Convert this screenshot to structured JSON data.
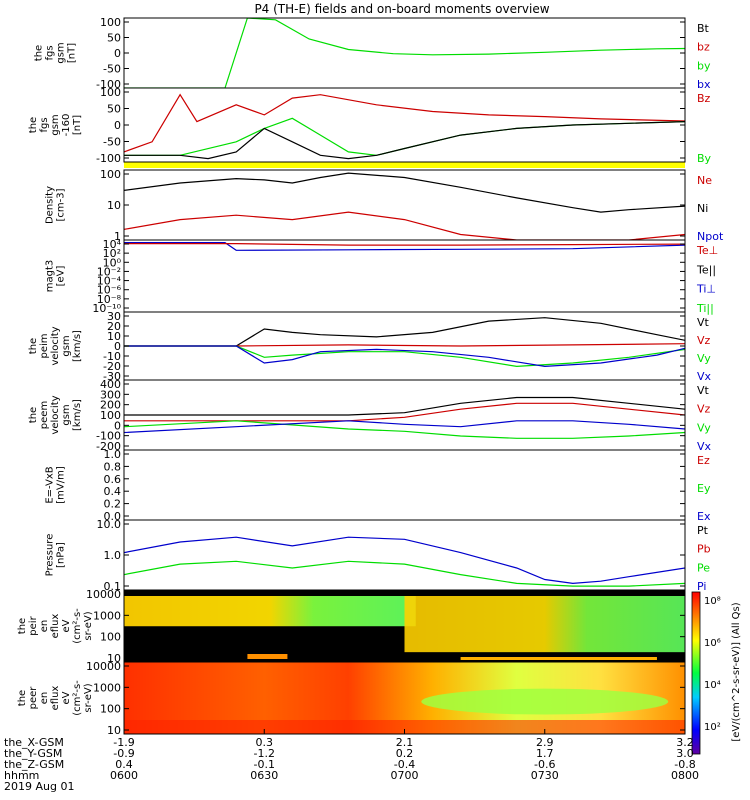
{
  "title": "P4 (TH-E) fields and on-board moments overview",
  "footer": {
    "labels": [
      "the_X-GSM",
      "the_Y-GSM",
      "the_Z-GSM",
      "hhmm",
      "2019 Aug 01"
    ],
    "columns": [
      [
        "-1.9",
        "-0.9",
        "0.4",
        "0600"
      ],
      [
        "0.3",
        "-1.2",
        "-0.1",
        "0630"
      ],
      [
        "2.1",
        "0.2",
        "-0.4",
        "0700"
      ],
      [
        "2.9",
        "1.7",
        "-0.6",
        "0730"
      ],
      [
        "3.2",
        "3.0",
        "-0.8",
        "0800"
      ]
    ]
  },
  "colors": {
    "black": "#000000",
    "red": "#cc0000",
    "green": "#00dd00",
    "blue": "#0000cc",
    "yellow": "#ffff00"
  },
  "chart_data": [
    {
      "type": "line",
      "panel": "fgs_gsm_top",
      "ylabel": [
        "the",
        "fgs",
        "gsm",
        "[nT]"
      ],
      "yticks": [
        "100",
        "50",
        "0",
        "-50",
        "-100"
      ],
      "ylim": [
        -100,
        100
      ],
      "legend": [
        {
          "text": "Bt",
          "color": "#000000"
        },
        {
          "text": "bz",
          "color": "#cc0000"
        },
        {
          "text": "by",
          "color": "#00dd00"
        },
        {
          "text": "bx",
          "color": "#0000cc"
        }
      ],
      "series": [
        {
          "name": "by",
          "color": "#00dd00",
          "x": [
            0.0,
            0.12,
            0.18,
            0.22,
            0.27,
            0.33,
            0.4,
            0.48,
            0.55,
            0.65,
            0.75,
            0.85,
            0.95,
            1.0
          ],
          "y": [
            -100,
            -100,
            -100,
            100,
            95,
            40,
            10,
            -2,
            -5,
            -3,
            2,
            8,
            12,
            13
          ]
        }
      ]
    },
    {
      "type": "line",
      "panel": "fgs_gsm_bottom",
      "ylabel": [
        "the",
        "fgs",
        "gsm",
        "-160",
        "[nT]"
      ],
      "yticks": [
        "100",
        "50",
        "0",
        "-50",
        "-100"
      ],
      "ylim": [
        -120,
        100
      ],
      "legend": [
        {
          "text": "Bz",
          "color": "#cc0000"
        },
        {
          "text": "By",
          "color": "#00dd00"
        }
      ],
      "series": [
        {
          "name": "Bz",
          "color": "#cc0000",
          "x": [
            0.0,
            0.05,
            0.1,
            0.13,
            0.2,
            0.25,
            0.3,
            0.35,
            0.45,
            0.55,
            0.65,
            0.75,
            0.85,
            1.0
          ],
          "y": [
            -90,
            -60,
            80,
            0,
            50,
            20,
            70,
            80,
            50,
            30,
            20,
            15,
            8,
            2
          ]
        },
        {
          "name": "By",
          "color": "#00dd00",
          "x": [
            0.0,
            0.1,
            0.2,
            0.25,
            0.3,
            0.35,
            0.4,
            0.45,
            0.5,
            0.6,
            0.7,
            0.8,
            0.9,
            1.0
          ],
          "y": [
            -100,
            -100,
            -60,
            -20,
            10,
            -40,
            -90,
            -100,
            -80,
            -40,
            -20,
            -10,
            -5,
            0
          ]
        },
        {
          "name": "Bt",
          "color": "#000000",
          "x": [
            0.0,
            0.1,
            0.15,
            0.2,
            0.25,
            0.3,
            0.35,
            0.4,
            0.45,
            0.5,
            0.6,
            0.7,
            0.8,
            0.9,
            1.0
          ],
          "y": [
            -100,
            -100,
            -110,
            -90,
            -20,
            -60,
            -100,
            -110,
            -100,
            -80,
            -40,
            -20,
            -10,
            -5,
            0
          ]
        }
      ]
    },
    {
      "type": "line",
      "panel": "density",
      "ylabel": [
        "Density",
        "[cm-3]"
      ],
      "yticks": [
        "100",
        "10",
        "1"
      ],
      "ylim": [
        0.3,
        200
      ],
      "yscale": "log",
      "legend": [
        {
          "text": "Ne",
          "color": "#cc0000"
        },
        {
          "text": "Ni",
          "color": "#000000"
        },
        {
          "text": "Npot",
          "color": "#0000cc"
        }
      ],
      "series": [
        {
          "name": "Ni",
          "color": "#000000",
          "x": [
            0.0,
            0.1,
            0.2,
            0.25,
            0.3,
            0.35,
            0.4,
            0.5,
            0.6,
            0.7,
            0.8,
            0.85,
            0.9,
            1.0
          ],
          "y": [
            30,
            60,
            90,
            80,
            60,
            100,
            150,
            100,
            40,
            15,
            6,
            4,
            5,
            7
          ]
        },
        {
          "name": "Ne",
          "color": "#cc0000",
          "x": [
            0.0,
            0.1,
            0.2,
            0.3,
            0.4,
            0.5,
            0.6,
            0.7,
            0.8,
            0.9,
            1.0
          ],
          "y": [
            0.8,
            2,
            3,
            2,
            4,
            2,
            0.5,
            0.3,
            0.3,
            0.3,
            0.5
          ]
        }
      ]
    },
    {
      "type": "line",
      "panel": "temperature",
      "ylabel": [
        "magt3",
        "[eV]"
      ],
      "yticks": [
        "10⁴",
        "10²",
        "10⁰",
        "10⁻²",
        "10⁻⁴",
        "10⁻⁶",
        "10⁻⁸",
        "10⁻¹⁰"
      ],
      "ylim": [
        -10,
        4
      ],
      "legend": [
        {
          "text": "Te⊥",
          "color": "#cc0000"
        },
        {
          "text": "Te||",
          "color": "#000000"
        },
        {
          "text": "Ti⊥",
          "color": "#0000cc"
        },
        {
          "text": "Ti||",
          "color": "#00dd00"
        }
      ],
      "series": [
        {
          "name": "Ti⊥",
          "color": "#0000cc",
          "x": [
            0.0,
            0.18,
            0.2,
            0.4,
            0.6,
            0.8,
            1.0
          ],
          "y": [
            3.5,
            3.5,
            2.0,
            2.1,
            2.2,
            2.3,
            3.0
          ]
        },
        {
          "name": "Te⊥",
          "color": "#cc0000",
          "x": [
            0.0,
            0.2,
            0.4,
            0.6,
            0.8,
            1.0
          ],
          "y": [
            3.3,
            3.3,
            3.0,
            3.0,
            3.1,
            3.2
          ]
        }
      ]
    },
    {
      "type": "line",
      "panel": "peim_velocity",
      "ylabel": [
        "the",
        "peim",
        "velocity",
        "gsm",
        "[km/s]"
      ],
      "yticks": [
        "30",
        "20",
        "10",
        "0",
        "-10",
        "-20",
        "-30"
      ],
      "ylim": [
        -30,
        30
      ],
      "legend": [
        {
          "text": "Vt",
          "color": "#000000"
        },
        {
          "text": "Vz",
          "color": "#cc0000"
        },
        {
          "text": "Vy",
          "color": "#00dd00"
        },
        {
          "text": "Vx",
          "color": "#0000cc"
        }
      ],
      "series": [
        {
          "name": "Vt",
          "color": "#000000",
          "x": [
            0.0,
            0.2,
            0.25,
            0.3,
            0.35,
            0.45,
            0.55,
            0.65,
            0.75,
            0.85,
            0.95,
            1.0
          ],
          "y": [
            0,
            0,
            15,
            12,
            10,
            8,
            12,
            22,
            25,
            20,
            10,
            5
          ]
        },
        {
          "name": "Vz",
          "color": "#cc0000",
          "x": [
            0.0,
            0.2,
            0.4,
            0.6,
            0.8,
            1.0
          ],
          "y": [
            0,
            0,
            1,
            0,
            1,
            2
          ]
        },
        {
          "name": "Vy",
          "color": "#00dd00",
          "x": [
            0.0,
            0.2,
            0.25,
            0.3,
            0.4,
            0.5,
            0.6,
            0.7,
            0.8,
            0.9,
            1.0
          ],
          "y": [
            0,
            0,
            -10,
            -8,
            -5,
            -5,
            -10,
            -18,
            -15,
            -10,
            -3
          ]
        },
        {
          "name": "Vx",
          "color": "#0000cc",
          "x": [
            0.0,
            0.2,
            0.25,
            0.3,
            0.35,
            0.45,
            0.55,
            0.65,
            0.75,
            0.85,
            0.95,
            1.0
          ],
          "y": [
            0,
            0,
            -15,
            -12,
            -5,
            -3,
            -5,
            -10,
            -18,
            -15,
            -8,
            -2
          ]
        }
      ]
    },
    {
      "type": "line",
      "panel": "peem_velocity",
      "ylabel": [
        "the",
        "peem",
        "velocity",
        "gsm",
        "[km/s]"
      ],
      "yticks": [
        "400",
        "300",
        "200",
        "100",
        "0",
        "-100",
        "-200"
      ],
      "ylim": [
        -200,
        400
      ],
      "legend": [
        {
          "text": "Vt",
          "color": "#000000"
        },
        {
          "text": "Vz",
          "color": "#cc0000"
        },
        {
          "text": "Vy",
          "color": "#00dd00"
        },
        {
          "text": "Vx",
          "color": "#0000cc"
        }
      ],
      "series": [
        {
          "name": "Vt",
          "color": "#000000",
          "x": [
            0.0,
            0.2,
            0.4,
            0.5,
            0.6,
            0.7,
            0.8,
            0.9,
            1.0
          ],
          "y": [
            100,
            100,
            100,
            120,
            200,
            250,
            250,
            200,
            150
          ]
        },
        {
          "name": "Vz",
          "color": "#cc0000",
          "x": [
            0.0,
            0.2,
            0.4,
            0.5,
            0.6,
            0.7,
            0.8,
            0.9,
            1.0
          ],
          "y": [
            50,
            50,
            50,
            80,
            150,
            200,
            200,
            150,
            100
          ]
        },
        {
          "name": "Vy",
          "color": "#00dd00",
          "x": [
            0.0,
            0.2,
            0.4,
            0.5,
            0.6,
            0.7,
            0.8,
            0.9,
            1.0
          ],
          "y": [
            0,
            50,
            -20,
            -40,
            -80,
            -100,
            -100,
            -80,
            -50
          ]
        },
        {
          "name": "Vx",
          "color": "#0000cc",
          "x": [
            0.0,
            0.2,
            0.4,
            0.5,
            0.6,
            0.7,
            0.8,
            0.9,
            1.0
          ],
          "y": [
            -50,
            0,
            50,
            20,
            0,
            50,
            50,
            20,
            -20
          ]
        }
      ]
    },
    {
      "type": "line",
      "panel": "efield",
      "ylabel": [
        "E=-VxB",
        "[mV/m]"
      ],
      "yticks": [
        "1.0",
        "0.8",
        "0.6",
        "0.4",
        "0.2",
        "0.0"
      ],
      "ylim": [
        0,
        1
      ],
      "legend": [
        {
          "text": "Ez",
          "color": "#cc0000"
        },
        {
          "text": "Ey",
          "color": "#00dd00"
        },
        {
          "text": "Ex",
          "color": "#0000cc"
        }
      ],
      "series": []
    },
    {
      "type": "line",
      "panel": "pressure",
      "ylabel": [
        "Pressure",
        "[nPa]"
      ],
      "yticks": [
        "10.0",
        "1.0",
        "0.1"
      ],
      "ylim": [
        0.02,
        30
      ],
      "yscale": "log",
      "legend": [
        {
          "text": "Pt",
          "color": "#000000"
        },
        {
          "text": "Pb",
          "color": "#cc0000"
        },
        {
          "text": "Pe",
          "color": "#00dd00"
        },
        {
          "text": "Pi",
          "color": "#0000cc"
        }
      ],
      "series": [
        {
          "name": "Pi",
          "color": "#0000cc",
          "x": [
            0.0,
            0.1,
            0.2,
            0.3,
            0.4,
            0.5,
            0.6,
            0.7,
            0.75,
            0.8,
            0.85,
            0.9,
            1.0
          ],
          "y": [
            1,
            3,
            5,
            2,
            5,
            4,
            1,
            0.2,
            0.06,
            0.04,
            0.05,
            0.08,
            0.2
          ]
        },
        {
          "name": "Pe",
          "color": "#00dd00",
          "x": [
            0.0,
            0.1,
            0.2,
            0.3,
            0.4,
            0.5,
            0.6,
            0.7,
            0.8,
            0.9,
            1.0
          ],
          "y": [
            0.1,
            0.3,
            0.4,
            0.2,
            0.4,
            0.3,
            0.1,
            0.04,
            0.03,
            0.03,
            0.04
          ]
        }
      ]
    },
    {
      "type": "heatmap",
      "panel": "peir_eflux",
      "ylabel": [
        "the",
        "peir",
        "en",
        "eflux",
        "eV",
        "(cm²-s-",
        "sr-eV)"
      ],
      "yticks": [
        "10000",
        "1000",
        "100",
        "10"
      ]
    },
    {
      "type": "heatmap",
      "panel": "peer_eflux",
      "ylabel": [
        "the",
        "peer",
        "en",
        "eflux",
        "eV",
        "(cm²-s-",
        "sr-eV)"
      ],
      "yticks": [
        "10000",
        "1000",
        "100",
        "10"
      ]
    }
  ],
  "colorbar": {
    "label": "[eV/(cm^2-s-sr-eV)] (All Qs)",
    "ticks": [
      "10⁸",
      "10⁶",
      "10⁴",
      "10²"
    ]
  }
}
